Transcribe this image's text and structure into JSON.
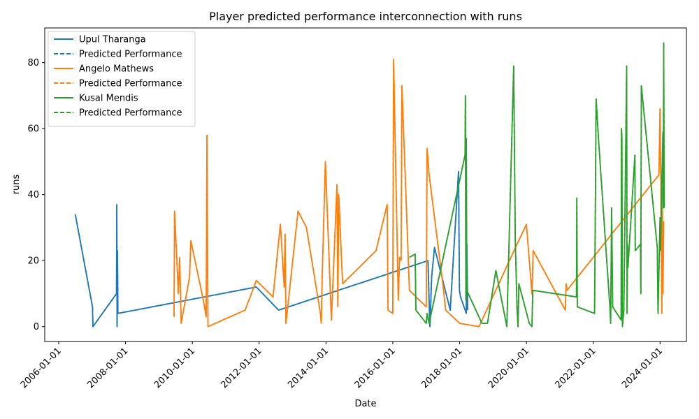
{
  "chart_data": {
    "type": "line",
    "title": "Player predicted performance interconnection with runs",
    "xlabel": "Date",
    "ylabel": "runs",
    "xlim": [
      "2005-08-01",
      "2024-10-15"
    ],
    "ylim": [
      -4.5,
      90.5
    ],
    "x_ticks": [
      "2006-01-01",
      "2008-01-01",
      "2010-01-01",
      "2012-01-01",
      "2014-01-01",
      "2016-01-01",
      "2018-01-01",
      "2020-01-01",
      "2022-01-01",
      "2024-01-01"
    ],
    "y_ticks": [
      0,
      20,
      40,
      60,
      80
    ],
    "grid": false,
    "legend_position": "top-left",
    "series": [
      {
        "name": "Upul Tharanga",
        "style": "solid",
        "color": "#1f77b4",
        "points": [
          [
            "2006-07-01",
            34
          ],
          [
            "2007-01-05",
            6
          ],
          [
            "2007-01-10",
            0
          ],
          [
            "2007-09-25",
            10
          ],
          [
            "2007-09-28",
            37
          ],
          [
            "2007-10-01",
            0
          ],
          [
            "2007-10-05",
            23
          ],
          [
            "2007-10-10",
            4
          ],
          [
            "2011-12-01",
            12
          ],
          [
            "2012-08-01",
            5
          ],
          [
            "2017-01-20",
            20
          ],
          [
            "2017-02-05",
            4
          ],
          [
            "2017-02-10",
            0
          ],
          [
            "2017-03-01",
            15
          ],
          [
            "2017-04-01",
            24
          ],
          [
            "2017-09-20",
            5
          ],
          [
            "2017-12-20",
            47
          ],
          [
            "2017-12-30",
            11
          ],
          [
            "2018-01-10",
            9
          ],
          [
            "2018-03-15",
            4
          ],
          [
            "2018-03-20",
            25
          ],
          [
            "2018-03-30",
            5
          ]
        ]
      },
      {
        "name": "Predicted Performance",
        "style": "dashed",
        "color": "#1f77b4",
        "points": [
          [
            "2006-07-01",
            34
          ],
          [
            "2007-01-05",
            6
          ],
          [
            "2007-01-10",
            0
          ],
          [
            "2007-09-25",
            10
          ],
          [
            "2007-09-28",
            37
          ],
          [
            "2007-10-01",
            0
          ],
          [
            "2007-10-05",
            23
          ],
          [
            "2007-10-10",
            4
          ],
          [
            "2011-12-01",
            12
          ],
          [
            "2012-08-01",
            5
          ],
          [
            "2017-01-20",
            20
          ],
          [
            "2017-02-05",
            4
          ],
          [
            "2017-02-10",
            0
          ],
          [
            "2017-03-01",
            15
          ],
          [
            "2017-04-01",
            24
          ],
          [
            "2017-09-20",
            5
          ],
          [
            "2017-12-20",
            47
          ],
          [
            "2017-12-30",
            11
          ],
          [
            "2018-01-10",
            9
          ],
          [
            "2018-03-15",
            4
          ],
          [
            "2018-03-20",
            25
          ],
          [
            "2018-03-30",
            5
          ]
        ]
      },
      {
        "name": "Angelo Mathews",
        "style": "solid",
        "color": "#ff7f0e",
        "points": [
          [
            "2009-06-15",
            3
          ],
          [
            "2009-06-20",
            35
          ],
          [
            "2009-08-01",
            10
          ],
          [
            "2009-08-15",
            21
          ],
          [
            "2009-09-01",
            1
          ],
          [
            "2009-12-01",
            15
          ],
          [
            "2009-12-15",
            26
          ],
          [
            "2010-05-01",
            8
          ],
          [
            "2010-06-01",
            3
          ],
          [
            "2010-06-10",
            58
          ],
          [
            "2010-06-20",
            0
          ],
          [
            "2011-08-01",
            5
          ],
          [
            "2011-12-01",
            14
          ],
          [
            "2012-06-01",
            9
          ],
          [
            "2012-08-20",
            31
          ],
          [
            "2012-10-01",
            12
          ],
          [
            "2012-10-10",
            28
          ],
          [
            "2012-10-20",
            1
          ],
          [
            "2013-03-01",
            35
          ],
          [
            "2013-06-01",
            30
          ],
          [
            "2013-11-01",
            4
          ],
          [
            "2013-11-10",
            1
          ],
          [
            "2013-11-20",
            15
          ],
          [
            "2013-12-25",
            50
          ],
          [
            "2014-03-01",
            2
          ],
          [
            "2014-05-01",
            43
          ],
          [
            "2014-05-10",
            6
          ],
          [
            "2014-05-20",
            40
          ],
          [
            "2014-07-01",
            13
          ],
          [
            "2015-07-01",
            23
          ],
          [
            "2015-11-01",
            37
          ],
          [
            "2015-11-10",
            5
          ],
          [
            "2016-01-01",
            4
          ],
          [
            "2016-01-10",
            81
          ],
          [
            "2016-03-01",
            8
          ],
          [
            "2016-03-15",
            21
          ],
          [
            "2016-04-01",
            20
          ],
          [
            "2016-04-10",
            73
          ],
          [
            "2016-07-01",
            11
          ],
          [
            "2017-01-01",
            6
          ],
          [
            "2017-01-10",
            54
          ],
          [
            "2017-02-01",
            46
          ],
          [
            "2017-07-01",
            13
          ],
          [
            "2017-08-01",
            5
          ],
          [
            "2018-01-01",
            1
          ],
          [
            "2018-08-01",
            0
          ],
          [
            "2019-08-01",
            22
          ],
          [
            "2020-01-01",
            31
          ],
          [
            "2020-03-01",
            10
          ],
          [
            "2020-03-15",
            23
          ],
          [
            "2021-03-01",
            5
          ],
          [
            "2021-03-10",
            13
          ],
          [
            "2021-03-20",
            11
          ],
          [
            "2023-12-20",
            46
          ],
          [
            "2024-01-01",
            66
          ],
          [
            "2024-01-10",
            41
          ],
          [
            "2024-01-20",
            4
          ],
          [
            "2024-01-25",
            42
          ],
          [
            "2024-02-01",
            10
          ],
          [
            "2024-02-10",
            32
          ]
        ]
      },
      {
        "name": "Predicted Performance",
        "style": "dashed",
        "color": "#ff7f0e",
        "points": [
          [
            "2009-06-15",
            3
          ],
          [
            "2009-06-20",
            35
          ],
          [
            "2009-08-01",
            10
          ],
          [
            "2009-08-15",
            21
          ],
          [
            "2009-09-01",
            1
          ],
          [
            "2009-12-01",
            15
          ],
          [
            "2009-12-15",
            26
          ],
          [
            "2010-05-01",
            8
          ],
          [
            "2010-06-01",
            3
          ],
          [
            "2010-06-10",
            58
          ],
          [
            "2010-06-20",
            0
          ],
          [
            "2011-08-01",
            5
          ],
          [
            "2011-12-01",
            14
          ],
          [
            "2012-06-01",
            9
          ],
          [
            "2012-08-20",
            31
          ],
          [
            "2012-10-01",
            12
          ],
          [
            "2012-10-10",
            28
          ],
          [
            "2012-10-20",
            1
          ],
          [
            "2013-03-01",
            35
          ],
          [
            "2013-06-01",
            30
          ],
          [
            "2013-11-01",
            4
          ],
          [
            "2013-11-10",
            1
          ],
          [
            "2013-11-20",
            15
          ],
          [
            "2013-12-25",
            50
          ],
          [
            "2014-03-01",
            2
          ],
          [
            "2014-05-01",
            43
          ],
          [
            "2014-05-10",
            6
          ],
          [
            "2014-05-20",
            40
          ],
          [
            "2014-07-01",
            13
          ],
          [
            "2015-07-01",
            23
          ],
          [
            "2015-11-01",
            37
          ],
          [
            "2015-11-10",
            5
          ],
          [
            "2016-01-01",
            4
          ],
          [
            "2016-01-10",
            81
          ],
          [
            "2016-03-01",
            8
          ],
          [
            "2016-03-15",
            21
          ],
          [
            "2016-04-01",
            20
          ],
          [
            "2016-04-10",
            73
          ],
          [
            "2016-07-01",
            11
          ],
          [
            "2017-01-01",
            6
          ],
          [
            "2017-01-10",
            54
          ],
          [
            "2017-02-01",
            46
          ],
          [
            "2017-07-01",
            13
          ],
          [
            "2017-08-01",
            5
          ],
          [
            "2018-01-01",
            1
          ],
          [
            "2018-08-01",
            0
          ],
          [
            "2019-08-01",
            22
          ],
          [
            "2020-01-01",
            31
          ],
          [
            "2020-03-01",
            10
          ],
          [
            "2020-03-15",
            23
          ],
          [
            "2021-03-01",
            5
          ],
          [
            "2021-03-10",
            13
          ],
          [
            "2021-03-20",
            11
          ],
          [
            "2023-12-20",
            46
          ],
          [
            "2024-01-01",
            66
          ],
          [
            "2024-01-10",
            41
          ],
          [
            "2024-01-20",
            4
          ],
          [
            "2024-01-25",
            42
          ],
          [
            "2024-02-01",
            10
          ],
          [
            "2024-02-10",
            32
          ]
        ]
      },
      {
        "name": "Kusal Mendis",
        "style": "solid",
        "color": "#2ca02c",
        "points": [
          [
            "2016-07-01",
            21
          ],
          [
            "2016-09-01",
            22
          ],
          [
            "2016-09-10",
            5
          ],
          [
            "2017-01-01",
            1
          ],
          [
            "2017-01-10",
            4
          ],
          [
            "2017-02-01",
            1
          ],
          [
            "2018-03-01",
            52
          ],
          [
            "2018-03-05",
            70
          ],
          [
            "2018-03-10",
            8
          ],
          [
            "2018-03-15",
            57
          ],
          [
            "2018-03-20",
            11
          ],
          [
            "2018-09-01",
            1
          ],
          [
            "2018-11-01",
            1
          ],
          [
            "2019-02-01",
            17
          ],
          [
            "2019-06-01",
            0
          ],
          [
            "2019-08-15",
            79
          ],
          [
            "2019-09-01",
            26
          ],
          [
            "2019-09-20",
            6
          ],
          [
            "2019-10-01",
            0
          ],
          [
            "2019-10-10",
            13
          ],
          [
            "2020-02-01",
            1
          ],
          [
            "2020-03-01",
            0
          ],
          [
            "2020-03-10",
            11
          ],
          [
            "2021-07-01",
            9
          ],
          [
            "2021-07-05",
            39
          ],
          [
            "2021-07-10",
            6
          ],
          [
            "2022-01-15",
            4
          ],
          [
            "2022-02-01",
            69
          ],
          [
            "2022-03-01",
            56
          ],
          [
            "2022-07-01",
            6
          ],
          [
            "2022-07-10",
            1
          ],
          [
            "2022-07-20",
            36
          ],
          [
            "2022-08-01",
            6
          ],
          [
            "2022-11-01",
            2
          ],
          [
            "2022-11-05",
            60
          ],
          [
            "2022-11-10",
            57
          ],
          [
            "2022-11-15",
            0
          ],
          [
            "2022-12-01",
            5
          ],
          [
            "2023-01-01",
            79
          ],
          [
            "2023-01-05",
            4
          ],
          [
            "2023-01-10",
            25
          ],
          [
            "2023-01-15",
            18
          ],
          [
            "2023-04-01",
            52
          ],
          [
            "2023-04-05",
            23
          ],
          [
            "2023-06-01",
            25
          ],
          [
            "2023-06-05",
            10
          ],
          [
            "2023-06-10",
            73
          ],
          [
            "2023-12-01",
            24
          ],
          [
            "2023-12-10",
            4
          ],
          [
            "2024-01-01",
            33
          ],
          [
            "2024-01-05",
            23
          ],
          [
            "2024-02-01",
            59
          ],
          [
            "2024-02-05",
            36
          ],
          [
            "2024-02-10",
            86
          ],
          [
            "2024-02-15",
            36
          ]
        ]
      },
      {
        "name": "Predicted Performance",
        "style": "dashed",
        "color": "#2ca02c",
        "points": [
          [
            "2016-07-01",
            21
          ],
          [
            "2016-09-01",
            22
          ],
          [
            "2016-09-10",
            5
          ],
          [
            "2017-01-01",
            1
          ],
          [
            "2017-01-10",
            4
          ],
          [
            "2017-02-01",
            1
          ],
          [
            "2018-03-01",
            52
          ],
          [
            "2018-03-05",
            70
          ],
          [
            "2018-03-10",
            8
          ],
          [
            "2018-03-15",
            57
          ],
          [
            "2018-03-20",
            11
          ],
          [
            "2018-09-01",
            1
          ],
          [
            "2018-11-01",
            1
          ],
          [
            "2019-02-01",
            17
          ],
          [
            "2019-06-01",
            0
          ],
          [
            "2019-08-15",
            79
          ],
          [
            "2019-09-01",
            26
          ],
          [
            "2019-09-20",
            6
          ],
          [
            "2019-10-01",
            0
          ],
          [
            "2019-10-10",
            13
          ],
          [
            "2020-02-01",
            1
          ],
          [
            "2020-03-01",
            0
          ],
          [
            "2020-03-10",
            11
          ],
          [
            "2021-07-01",
            9
          ],
          [
            "2021-07-05",
            39
          ],
          [
            "2021-07-10",
            6
          ],
          [
            "2022-01-15",
            4
          ],
          [
            "2022-02-01",
            69
          ],
          [
            "2022-03-01",
            56
          ],
          [
            "2022-07-01",
            6
          ],
          [
            "2022-07-10",
            1
          ],
          [
            "2022-07-20",
            36
          ],
          [
            "2022-08-01",
            6
          ],
          [
            "2022-11-01",
            2
          ],
          [
            "2022-11-05",
            60
          ],
          [
            "2022-11-10",
            57
          ],
          [
            "2022-11-15",
            0
          ],
          [
            "2022-12-01",
            5
          ],
          [
            "2023-01-01",
            79
          ],
          [
            "2023-01-05",
            4
          ],
          [
            "2023-01-10",
            25
          ],
          [
            "2023-01-15",
            18
          ],
          [
            "2023-04-01",
            52
          ],
          [
            "2023-04-05",
            23
          ],
          [
            "2023-06-01",
            25
          ],
          [
            "2023-06-05",
            10
          ],
          [
            "2023-06-10",
            73
          ],
          [
            "2023-12-01",
            24
          ],
          [
            "2023-12-10",
            4
          ],
          [
            "2024-01-01",
            33
          ],
          [
            "2024-01-05",
            23
          ],
          [
            "2024-02-01",
            59
          ],
          [
            "2024-02-05",
            36
          ],
          [
            "2024-02-10",
            86
          ],
          [
            "2024-02-15",
            36
          ]
        ]
      }
    ]
  }
}
